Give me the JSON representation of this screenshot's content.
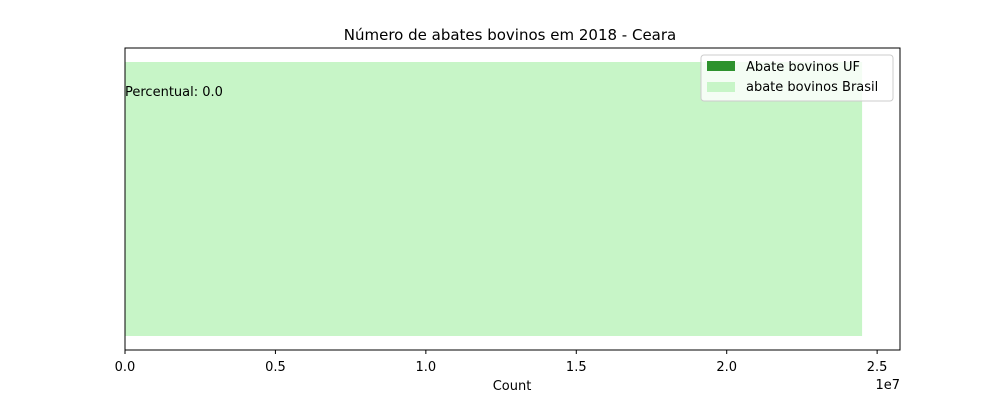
{
  "chart_data": {
    "type": "bar",
    "orientation": "horizontal",
    "title": "Número de abates bovinos em 2018 - Ceara",
    "xlabel": "Count",
    "x_offset_text": "1e7",
    "xlim": [
      0,
      25760000
    ],
    "xticks": [
      {
        "value": 0,
        "label": "0.0"
      },
      {
        "value": 5000000,
        "label": "0.5"
      },
      {
        "value": 10000000,
        "label": "1.0"
      },
      {
        "value": 15000000,
        "label": "1.5"
      },
      {
        "value": 20000000,
        "label": "2.0"
      },
      {
        "value": 25000000,
        "label": "2.5"
      }
    ],
    "series": [
      {
        "name": "abate bovinos Brasil",
        "value": 24500000,
        "color": "#c7f5c7"
      },
      {
        "name": "Abate bovinos UF",
        "value": 0,
        "color": "#2e922e"
      }
    ],
    "annotation": "Percentual: 0.0",
    "legend_position": "top-right",
    "grid": false
  }
}
